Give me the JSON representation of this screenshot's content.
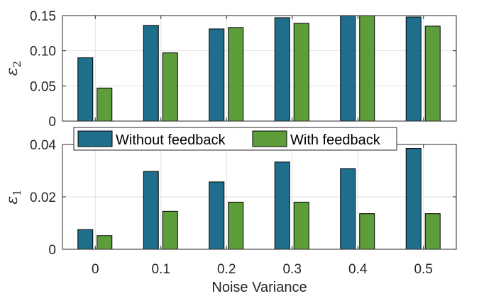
{
  "chart_data": [
    {
      "type": "bar",
      "panel": "top",
      "ylabel": "ε2",
      "ylabel_symbol": "ε",
      "ylabel_subscript": "2",
      "categories": [
        "0",
        "0.1",
        "0.2",
        "0.3",
        "0.4",
        "0.5"
      ],
      "ylim": [
        0,
        0.15
      ],
      "yticks": [
        0,
        0.05,
        0.1,
        0.15
      ],
      "ytick_labels": [
        "0",
        "0.05",
        "0.10",
        "0.15"
      ],
      "grid": true,
      "series": [
        {
          "name": "Without feedback",
          "color": "#1f6e8c",
          "values": [
            0.09,
            0.136,
            0.131,
            0.147,
            0.152,
            0.148
          ]
        },
        {
          "name": "With feedback",
          "color": "#5d9e3a",
          "values": [
            0.047,
            0.097,
            0.133,
            0.139,
            0.15,
            0.135
          ]
        }
      ]
    },
    {
      "type": "bar",
      "panel": "bottom",
      "ylabel": "ε1",
      "ylabel_symbol": "ε",
      "ylabel_subscript": "1",
      "xlabel": "Noise Variance",
      "categories": [
        "0",
        "0.1",
        "0.2",
        "0.3",
        "0.4",
        "0.5"
      ],
      "ylim": [
        0,
        0.04
      ],
      "yticks": [
        0,
        0.02,
        0.04
      ],
      "ytick_labels": [
        "0",
        "0.02",
        "0.04"
      ],
      "grid": true,
      "legend": {
        "placement": "top",
        "entries": [
          "Without feedback",
          "With feedback"
        ]
      },
      "series": [
        {
          "name": "Without feedback",
          "color": "#1f6e8c",
          "values": [
            0.0075,
            0.0297,
            0.0257,
            0.0333,
            0.0308,
            0.0385
          ]
        },
        {
          "name": "With feedback",
          "color": "#5d9e3a",
          "values": [
            0.0052,
            0.0145,
            0.018,
            0.018,
            0.0136,
            0.0136
          ]
        }
      ]
    }
  ]
}
